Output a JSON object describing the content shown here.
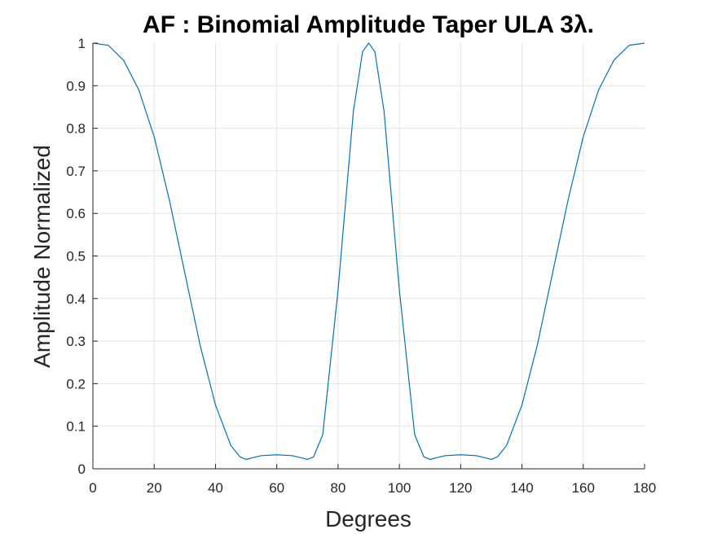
{
  "chart_data": {
    "type": "line",
    "title": "AF : Binomial Amplitude Taper ULA 3λ.",
    "xlabel": "Degrees",
    "ylabel": "Amplitude Normalized",
    "xlim": [
      0,
      180
    ],
    "ylim": [
      0,
      1
    ],
    "xticks": [
      0,
      20,
      40,
      60,
      80,
      100,
      120,
      140,
      160,
      180
    ],
    "yticks": [
      0,
      0.1,
      0.2,
      0.3,
      0.4,
      0.5,
      0.6,
      0.7,
      0.8,
      0.9,
      1
    ],
    "xtick_labels": [
      "0",
      "20",
      "40",
      "60",
      "80",
      "100",
      "120",
      "140",
      "160",
      "180"
    ],
    "ytick_labels": [
      "0",
      "0.1",
      "0.2",
      "0.3",
      "0.4",
      "0.5",
      "0.6",
      "0.7",
      "0.8",
      "0.9",
      "1"
    ],
    "grid": true,
    "series": [
      {
        "color": "#0072BD",
        "x": [
          0,
          5,
          10,
          15,
          20,
          25,
          30,
          35,
          40,
          45,
          48,
          50,
          52,
          55,
          60,
          65,
          68,
          70,
          72,
          75,
          80,
          85,
          88,
          90,
          92,
          95,
          100,
          105,
          108,
          110,
          112,
          115,
          120,
          125,
          128,
          130,
          132,
          135,
          140,
          145,
          150,
          155,
          160,
          165,
          170,
          175,
          180
        ],
        "y": [
          1.0,
          0.995,
          0.96,
          0.89,
          0.78,
          0.63,
          0.46,
          0.29,
          0.15,
          0.055,
          0.028,
          0.022,
          0.026,
          0.031,
          0.033,
          0.031,
          0.026,
          0.022,
          0.028,
          0.08,
          0.42,
          0.84,
          0.98,
          1.0,
          0.98,
          0.84,
          0.42,
          0.08,
          0.028,
          0.022,
          0.026,
          0.031,
          0.033,
          0.031,
          0.026,
          0.022,
          0.028,
          0.055,
          0.15,
          0.29,
          0.46,
          0.63,
          0.78,
          0.89,
          0.96,
          0.995,
          1.0
        ]
      }
    ]
  }
}
